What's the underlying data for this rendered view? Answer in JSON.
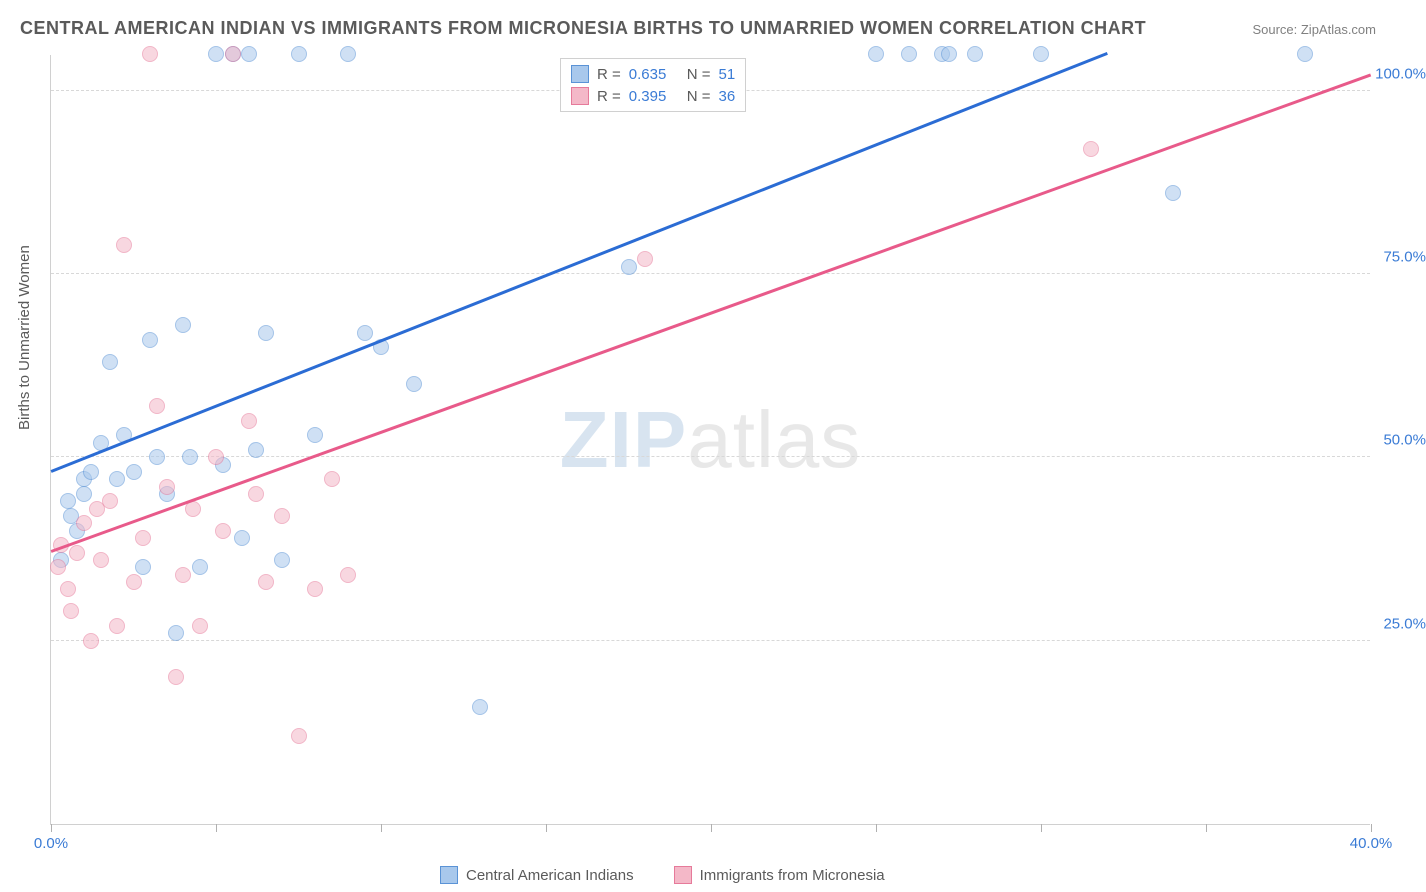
{
  "title": "CENTRAL AMERICAN INDIAN VS IMMIGRANTS FROM MICRONESIA BIRTHS TO UNMARRIED WOMEN CORRELATION CHART",
  "source_label": "Source: ",
  "source_name": "ZipAtlas.com",
  "ylabel": "Births to Unmarried Women",
  "watermark_zip": "ZIP",
  "watermark_atlas": "atlas",
  "chart": {
    "type": "scatter",
    "xlim": [
      0,
      40
    ],
    "ylim": [
      0,
      105
    ],
    "x_ticks": [
      0,
      5,
      10,
      15,
      20,
      25,
      30,
      35,
      40
    ],
    "x_tick_labels": {
      "0": "0.0%",
      "40": "40.0%"
    },
    "y_gridlines": [
      25,
      50,
      75,
      100
    ],
    "y_tick_labels": {
      "25": "25.0%",
      "50": "50.0%",
      "75": "75.0%",
      "100": "100.0%"
    },
    "x_label_color": "#3a7bd5",
    "y_label_color": "#3a7bd5",
    "background_color": "#ffffff",
    "grid_color": "#d8d8d8",
    "marker_radius": 8,
    "marker_opacity": 0.55,
    "series": [
      {
        "name": "Central American Indians",
        "color_fill": "#a8c8ec",
        "color_stroke": "#5a93d6",
        "R": "0.635",
        "N": "51",
        "trend": {
          "x1": 0,
          "y1": 48,
          "x2": 32,
          "y2": 105,
          "color": "#2b6cd4",
          "width": 2.5
        },
        "points": [
          [
            0.3,
            36
          ],
          [
            0.5,
            44
          ],
          [
            0.6,
            42
          ],
          [
            0.8,
            40
          ],
          [
            1.0,
            45
          ],
          [
            1.0,
            47
          ],
          [
            1.2,
            48
          ],
          [
            1.5,
            52
          ],
          [
            1.8,
            63
          ],
          [
            2.0,
            47
          ],
          [
            2.2,
            53
          ],
          [
            2.5,
            48
          ],
          [
            2.8,
            35
          ],
          [
            3.0,
            66
          ],
          [
            3.2,
            50
          ],
          [
            3.5,
            45
          ],
          [
            3.8,
            26
          ],
          [
            4.0,
            68
          ],
          [
            4.2,
            50
          ],
          [
            4.5,
            35
          ],
          [
            5.0,
            105
          ],
          [
            5.2,
            49
          ],
          [
            5.5,
            105
          ],
          [
            5.8,
            39
          ],
          [
            6.0,
            105
          ],
          [
            6.2,
            51
          ],
          [
            6.5,
            67
          ],
          [
            7.0,
            36
          ],
          [
            7.5,
            105
          ],
          [
            8.0,
            53
          ],
          [
            9.0,
            105
          ],
          [
            9.5,
            67
          ],
          [
            10.0,
            65
          ],
          [
            11.0,
            60
          ],
          [
            13.0,
            16
          ],
          [
            17.5,
            76
          ],
          [
            25.0,
            105
          ],
          [
            26.0,
            105
          ],
          [
            27.0,
            105
          ],
          [
            27.2,
            105
          ],
          [
            28.0,
            105
          ],
          [
            30.0,
            105
          ],
          [
            34.0,
            86
          ],
          [
            38.0,
            105
          ]
        ]
      },
      {
        "name": "Immigrants from Micronesia",
        "color_fill": "#f4b8c8",
        "color_stroke": "#e67a9a",
        "R": "0.395",
        "N": "36",
        "trend": {
          "x1": 0,
          "y1": 37,
          "x2": 40,
          "y2": 102,
          "color": "#e85a8a",
          "width": 2.5
        },
        "points": [
          [
            0.2,
            35
          ],
          [
            0.3,
            38
          ],
          [
            0.5,
            32
          ],
          [
            0.6,
            29
          ],
          [
            0.8,
            37
          ],
          [
            1.0,
            41
          ],
          [
            1.2,
            25
          ],
          [
            1.4,
            43
          ],
          [
            1.5,
            36
          ],
          [
            1.8,
            44
          ],
          [
            2.0,
            27
          ],
          [
            2.2,
            79
          ],
          [
            2.5,
            33
          ],
          [
            2.8,
            39
          ],
          [
            3.0,
            105
          ],
          [
            3.2,
            57
          ],
          [
            3.5,
            46
          ],
          [
            3.8,
            20
          ],
          [
            4.0,
            34
          ],
          [
            4.3,
            43
          ],
          [
            4.5,
            27
          ],
          [
            5.0,
            50
          ],
          [
            5.2,
            40
          ],
          [
            5.5,
            105
          ],
          [
            6.0,
            55
          ],
          [
            6.2,
            45
          ],
          [
            6.5,
            33
          ],
          [
            7.0,
            42
          ],
          [
            7.5,
            12
          ],
          [
            8.0,
            32
          ],
          [
            8.5,
            47
          ],
          [
            9.0,
            34
          ],
          [
            18.0,
            77
          ],
          [
            31.5,
            92
          ]
        ]
      }
    ]
  },
  "legend_top": {
    "R_label": "R =",
    "N_label": "N ="
  },
  "legend_bottom": [
    "Central American Indians",
    "Immigrants from Micronesia"
  ]
}
